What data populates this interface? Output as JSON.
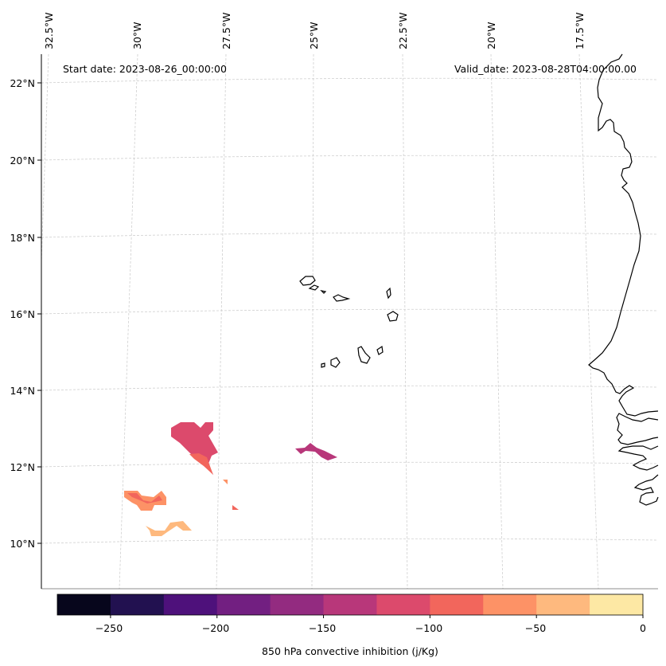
{
  "map": {
    "start_date": "Start date: 2023-08-26_00:00:00",
    "valid_date": "Valid_date: 2023-08-28T04:00:00.00",
    "lon_labels": [
      "32.5°W",
      "30°W",
      "27.5°W",
      "25°W",
      "22.5°W",
      "20°W",
      "17.5°W"
    ],
    "lat_labels": [
      "22°N",
      "20°N",
      "18°N",
      "16°N",
      "14°N",
      "12°N",
      "10°N"
    ],
    "colors": {
      "background": "#ffffff",
      "coastline": "#000000",
      "gridline": "#cfcfcf"
    }
  },
  "colorbar": {
    "label": "850 hPa convective inhibition (j/Kg)",
    "ticks": [
      "−250",
      "−200",
      "−150",
      "−100",
      "−50",
      "0"
    ],
    "colors": [
      "#07061c",
      "#221150",
      "#4e117b",
      "#721f81",
      "#932b80",
      "#b8377a",
      "#dc4a6c",
      "#f2665c",
      "#fd9266",
      "#feb97e",
      "#fde8a4"
    ],
    "levels": [
      -275,
      -250,
      -225,
      -200,
      -175,
      -150,
      -125,
      -100,
      -75,
      -50,
      -25,
      0
    ]
  },
  "regions": [
    {
      "name": "cin-patch-north-west",
      "level_color": "#dc4a6c"
    },
    {
      "name": "cin-patch-central",
      "level_color": "#b8377a"
    },
    {
      "name": "cin-patch-south-west",
      "level_color": "#fd9266"
    },
    {
      "name": "cin-patch-south",
      "level_color": "#feb97e"
    }
  ]
}
